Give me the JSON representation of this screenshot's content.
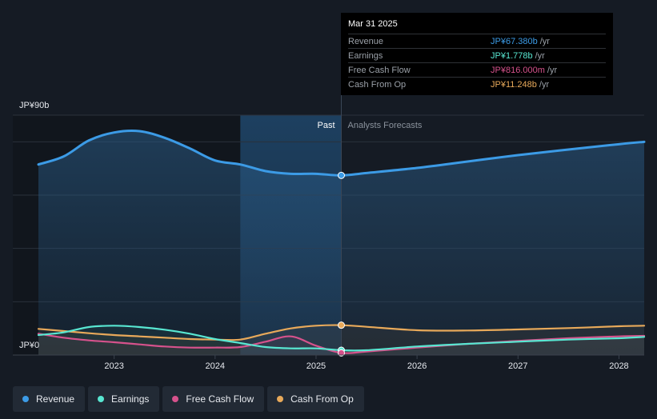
{
  "tooltip": {
    "date": "Mar 31 2025",
    "rows": [
      {
        "label": "Revenue",
        "value": "JP¥67.380b",
        "unit": "/yr",
        "color": "#3c9be6"
      },
      {
        "label": "Earnings",
        "value": "JP¥1.778b",
        "unit": "/yr",
        "color": "#58e6d1"
      },
      {
        "label": "Free Cash Flow",
        "value": "JP¥816.000m",
        "unit": "/yr",
        "color": "#d6528c"
      },
      {
        "label": "Cash From Op",
        "value": "JP¥11.248b",
        "unit": "/yr",
        "color": "#e8a95a"
      }
    ]
  },
  "legend": [
    {
      "label": "Revenue",
      "color": "#3c9be6"
    },
    {
      "label": "Earnings",
      "color": "#58e6d1"
    },
    {
      "label": "Free Cash Flow",
      "color": "#d6528c"
    },
    {
      "label": "Cash From Op",
      "color": "#e8a95a"
    }
  ],
  "labels": {
    "past": "Past",
    "forecast": "Analysts Forecasts",
    "y_top": "JP¥90b",
    "y_bottom": "JP¥0"
  },
  "chart_data": {
    "type": "line",
    "ylim": [
      0,
      90
    ],
    "xlim": [
      2022.25,
      2028.25
    ],
    "past_end": 2025.25,
    "highlight_start": 2024.25,
    "x_ticks": [
      2023,
      2024,
      2025,
      2026,
      2027,
      2028
    ],
    "x_tick_labels": [
      "2023",
      "2024",
      "2025",
      "2026",
      "2027",
      "2028"
    ],
    "gridlines": [
      0,
      20,
      40,
      60,
      80
    ],
    "series": [
      {
        "name": "Revenue",
        "color": "#3c9be6",
        "fill": true,
        "points": [
          [
            2022.25,
            71.5
          ],
          [
            2022.5,
            74.5
          ],
          [
            2022.75,
            80.5
          ],
          [
            2023.0,
            83.5
          ],
          [
            2023.25,
            84.0
          ],
          [
            2023.5,
            81.5
          ],
          [
            2023.75,
            77.5
          ],
          [
            2024.0,
            73.0
          ],
          [
            2024.25,
            71.5
          ],
          [
            2024.5,
            69.0
          ],
          [
            2024.75,
            68.0
          ],
          [
            2025.0,
            68.0
          ],
          [
            2025.25,
            67.4
          ],
          [
            2025.5,
            68.3
          ],
          [
            2026.0,
            70.2
          ],
          [
            2026.5,
            72.6
          ],
          [
            2027.0,
            75.0
          ],
          [
            2027.5,
            77.1
          ],
          [
            2028.0,
            79.1
          ],
          [
            2028.25,
            80.0
          ]
        ]
      },
      {
        "name": "Earnings",
        "color": "#58e6d1",
        "fill": false,
        "points": [
          [
            2022.25,
            7.5
          ],
          [
            2022.5,
            8.5
          ],
          [
            2022.75,
            10.5
          ],
          [
            2023.0,
            11.0
          ],
          [
            2023.25,
            10.5
          ],
          [
            2023.5,
            9.5
          ],
          [
            2023.75,
            8.0
          ],
          [
            2024.0,
            6.0
          ],
          [
            2024.25,
            4.5
          ],
          [
            2024.5,
            3.0
          ],
          [
            2024.75,
            2.5
          ],
          [
            2025.0,
            2.5
          ],
          [
            2025.25,
            1.8
          ],
          [
            2025.5,
            1.8
          ],
          [
            2026.0,
            3.2
          ],
          [
            2026.5,
            4.2
          ],
          [
            2027.0,
            5.0
          ],
          [
            2027.5,
            5.8
          ],
          [
            2028.0,
            6.3
          ],
          [
            2028.25,
            6.8
          ]
        ]
      },
      {
        "name": "Free Cash Flow",
        "color": "#d6528c",
        "fill": false,
        "points": [
          [
            2022.25,
            8.0
          ],
          [
            2022.5,
            6.5
          ],
          [
            2022.75,
            5.5
          ],
          [
            2023.0,
            4.8
          ],
          [
            2023.25,
            4.0
          ],
          [
            2023.5,
            3.2
          ],
          [
            2023.75,
            2.8
          ],
          [
            2024.0,
            2.8
          ],
          [
            2024.25,
            3.0
          ],
          [
            2024.5,
            5.0
          ],
          [
            2024.75,
            7.0
          ],
          [
            2025.0,
            3.5
          ],
          [
            2025.25,
            0.8
          ],
          [
            2025.5,
            1.3
          ],
          [
            2026.0,
            2.8
          ],
          [
            2026.5,
            4.2
          ],
          [
            2027.0,
            5.3
          ],
          [
            2027.5,
            6.3
          ],
          [
            2028.0,
            7.0
          ],
          [
            2028.25,
            7.2
          ]
        ]
      },
      {
        "name": "Cash From Op",
        "color": "#e8a95a",
        "fill": false,
        "points": [
          [
            2022.25,
            9.8
          ],
          [
            2022.5,
            9.0
          ],
          [
            2022.75,
            8.2
          ],
          [
            2023.0,
            7.5
          ],
          [
            2023.25,
            7.0
          ],
          [
            2023.5,
            6.5
          ],
          [
            2023.75,
            6.0
          ],
          [
            2024.0,
            5.8
          ],
          [
            2024.25,
            5.8
          ],
          [
            2024.5,
            8.0
          ],
          [
            2024.75,
            10.0
          ],
          [
            2025.0,
            11.0
          ],
          [
            2025.25,
            11.2
          ],
          [
            2025.5,
            10.6
          ],
          [
            2026.0,
            9.3
          ],
          [
            2026.5,
            9.2
          ],
          [
            2027.0,
            9.6
          ],
          [
            2027.5,
            10.1
          ],
          [
            2028.0,
            10.8
          ],
          [
            2028.25,
            11.0
          ]
        ]
      }
    ]
  }
}
